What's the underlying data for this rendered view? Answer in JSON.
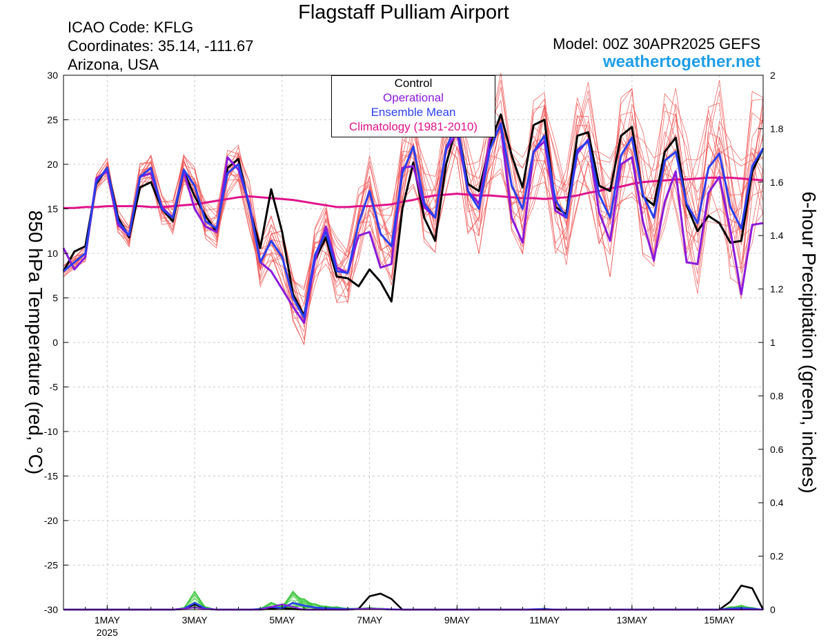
{
  "header": {
    "title": "Flagstaff Pulliam Airport",
    "icao": "ICAO Code: KFLG",
    "coordinates": "Coordinates: 35.14, -111.67",
    "location": "Arizona, USA",
    "model": "Model: 00Z 30APR2025 GEFS",
    "site": "weathertogether.net"
  },
  "legend": [
    {
      "label": "Control",
      "color": "#000000"
    },
    {
      "label": "Operational",
      "color": "#8a1adc"
    },
    {
      "label": "Ensemble Mean",
      "color": "#2a3ff0"
    },
    {
      "label": "Climatology (1981-2010)",
      "color": "#e0128a"
    }
  ],
  "chart_data": {
    "type": "line",
    "ylabel": "850 hPa Temperature (red, °C)",
    "y2label": "6-hour Precipitation (green, inches)",
    "ylim": [
      -30,
      30
    ],
    "y2lim": [
      0,
      2
    ],
    "yticks": [
      "30",
      "25",
      "20",
      "15",
      "10",
      "5",
      "0",
      "-5",
      "-10",
      "-15",
      "-20",
      "-25",
      "-30"
    ],
    "y2ticks": [
      "2",
      "1.8",
      "1.6",
      "1.4",
      "1.2",
      "1",
      "0.8",
      "0.6",
      "0.4",
      "0.2",
      "0"
    ],
    "x_unit": "6-hour steps from 00Z 30APR2025",
    "xticks": [
      {
        "step": 8,
        "label": "1MAY",
        "sublabel": "2025"
      },
      {
        "step": 16,
        "label": "3MAY"
      },
      {
        "step": 24,
        "label": "5MAY"
      },
      {
        "step": 32,
        "label": "7MAY"
      },
      {
        "step": 40,
        "label": "9MAY"
      },
      {
        "step": 48,
        "label": "11MAY"
      },
      {
        "step": 56,
        "label": "13MAY"
      },
      {
        "step": 64,
        "label": "15MAY"
      }
    ],
    "xlim": [
      4,
      68
    ],
    "grid": true,
    "colors": {
      "control": "#000000",
      "operational": "#8a1adc",
      "mean": "#2a3ff0",
      "climatology": "#e0128a",
      "members": "#f05050",
      "precip": "#3cc83c"
    },
    "series": [
      {
        "name": "Control",
        "x_start": 4,
        "values": [
          8.0,
          10.2,
          10.8,
          17.8,
          19.6,
          14.0,
          11.8,
          17.4,
          18.0,
          15.0,
          13.6,
          19.2,
          16.4,
          14.2,
          12.4,
          19.6,
          20.6,
          15.2,
          10.6,
          17.2,
          12.4,
          5.4,
          3.0,
          9.2,
          11.8,
          7.4,
          7.2,
          6.3,
          8.2,
          6.8,
          4.6,
          15.0,
          20.2,
          14.0,
          11.4,
          20.0,
          24.4,
          17.8,
          17.0,
          22.2,
          25.6,
          21.0,
          17.4,
          24.4,
          25.0,
          15.2,
          14.4,
          23.2,
          23.6,
          17.6,
          17.0,
          23.2,
          24.2,
          16.4,
          15.4,
          21.4,
          23.0,
          15.4,
          12.5,
          14.2,
          13.4,
          11.2,
          11.4,
          19.2,
          21.8
        ]
      },
      {
        "name": "Operational",
        "x_start": 4,
        "values": [
          10.6,
          8.2,
          9.6,
          18.4,
          19.2,
          13.2,
          12.0,
          18.6,
          19.0,
          15.2,
          14.0,
          19.2,
          15.0,
          13.0,
          12.4,
          20.8,
          19.4,
          15.6,
          9.0,
          8.0,
          6.0,
          4.0,
          2.2,
          9.2,
          13.0,
          8.4,
          7.8,
          12.0,
          12.4,
          8.4,
          8.8,
          19.6,
          19.8,
          15.2,
          14.0,
          21.6,
          23.6,
          17.0,
          15.6,
          22.8,
          24.2,
          14.0,
          11.2,
          21.4,
          22.6,
          14.8,
          14.0,
          21.2,
          22.8,
          14.6,
          11.4,
          20.0,
          20.8,
          13.6,
          9.2,
          15.8,
          19.2,
          9.0,
          8.8,
          16.8,
          18.6,
          12.6,
          5.4,
          13.2,
          13.4
        ]
      },
      {
        "name": "Ensemble Mean",
        "x_start": 4,
        "values": [
          8.0,
          9.0,
          10.0,
          18.0,
          19.6,
          13.6,
          12.0,
          18.6,
          19.6,
          15.0,
          14.0,
          19.4,
          17.6,
          13.6,
          12.8,
          19.0,
          20.0,
          15.4,
          9.0,
          11.4,
          9.6,
          5.0,
          2.8,
          9.8,
          12.4,
          8.0,
          7.8,
          13.4,
          17.0,
          12.2,
          10.8,
          19.0,
          22.0,
          15.6,
          14.0,
          21.8,
          24.6,
          17.0,
          15.0,
          21.6,
          24.6,
          17.6,
          15.0,
          21.4,
          23.2,
          16.0,
          14.0,
          21.6,
          22.6,
          16.6,
          14.0,
          21.0,
          23.0,
          16.6,
          14.0,
          20.4,
          21.4,
          15.6,
          13.4,
          19.6,
          21.2,
          15.2,
          12.8,
          19.8,
          21.8
        ]
      },
      {
        "name": "Climatology (1981-2010)",
        "x_start": 4,
        "values": [
          15.1,
          15.1,
          15.2,
          15.2,
          15.3,
          15.3,
          15.3,
          15.3,
          15.2,
          15.2,
          15.3,
          15.4,
          15.5,
          15.7,
          15.9,
          16.1,
          16.3,
          16.4,
          16.3,
          16.2,
          16.1,
          16.0,
          15.8,
          15.6,
          15.4,
          15.2,
          15.2,
          15.3,
          15.3,
          15.4,
          15.5,
          15.8,
          16.0,
          16.3,
          16.5,
          16.6,
          16.7,
          16.6,
          16.5,
          16.5,
          16.4,
          16.3,
          16.2,
          16.2,
          16.1,
          16.2,
          16.3,
          16.5,
          16.8,
          17.0,
          17.3,
          17.5,
          17.8,
          18.0,
          18.1,
          18.2,
          18.3,
          18.3,
          18.4,
          18.5,
          18.5,
          18.5,
          18.4,
          18.3,
          18.2
        ]
      },
      {
        "name": "Control precip",
        "axis": "y2",
        "x_start": 4,
        "values": [
          0,
          0,
          0,
          0,
          0,
          0,
          0,
          0,
          0,
          0,
          0,
          0.002,
          0.02,
          0.003,
          0,
          0,
          0,
          0,
          0,
          0.004,
          0.006,
          0.002,
          0,
          0,
          0,
          0,
          0,
          0.003,
          0.05,
          0.06,
          0.04,
          0,
          0,
          0,
          0,
          0,
          0,
          0,
          0,
          0,
          0,
          0,
          0,
          0,
          0,
          0,
          0,
          0,
          0,
          0,
          0,
          0,
          0,
          0,
          0,
          0,
          0,
          0,
          0,
          0,
          0,
          0.03,
          0.09,
          0.08,
          0
        ]
      },
      {
        "name": "Operational precip",
        "axis": "y2",
        "x_start": 4,
        "values": [
          0,
          0,
          0,
          0,
          0,
          0,
          0,
          0,
          0,
          0,
          0,
          0.003,
          0.008,
          0.002,
          0,
          0,
          0,
          0,
          0,
          0.01,
          0.02,
          0.01,
          0,
          0,
          0,
          0,
          0,
          0.002,
          0.004,
          0.002,
          0,
          0,
          0,
          0,
          0,
          0,
          0,
          0,
          0,
          0,
          0,
          0,
          0,
          0,
          0,
          0,
          0,
          0,
          0,
          0,
          0,
          0,
          0,
          0,
          0,
          0,
          0,
          0,
          0,
          0,
          0,
          0,
          0,
          0,
          0
        ]
      },
      {
        "name": "Ensemble Mean precip",
        "axis": "y2",
        "x_start": 4,
        "values": [
          0,
          0,
          0,
          0,
          0,
          0,
          0,
          0,
          0,
          0,
          0,
          0.003,
          0.025,
          0.004,
          0,
          0,
          0,
          0,
          0.002,
          0.01,
          0.006,
          0.025,
          0.015,
          0.008,
          0.005,
          0.004,
          0.002,
          0.002,
          0.003,
          0.002,
          0.001,
          0,
          0,
          0,
          0,
          0,
          0,
          0,
          0,
          0,
          0,
          0,
          0,
          0.001,
          0.002,
          0,
          0,
          0,
          0,
          0,
          0,
          0,
          0,
          0,
          0,
          0,
          0,
          0,
          0,
          0,
          0,
          0.004,
          0.006,
          0.003,
          0
        ]
      }
    ],
    "members_note": "20 thin red ensemble member traces of 850 hPa temperature and 20 thin green ensemble member precipitation traces"
  }
}
